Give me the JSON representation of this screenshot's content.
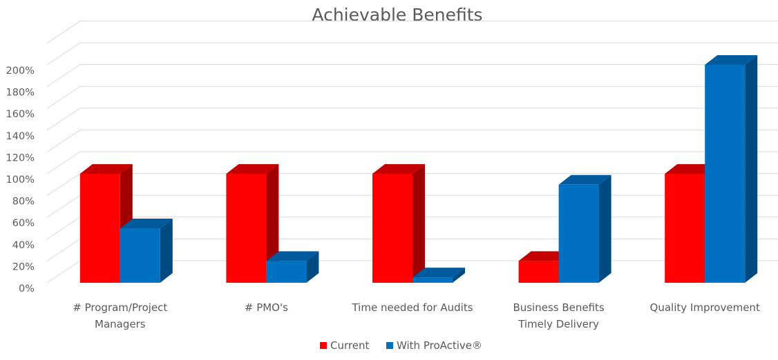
{
  "chart_data": {
    "type": "bar",
    "subtype": "3d-clustered-column",
    "title": "Achievable Benefits",
    "categories": [
      [
        "# Program/Project",
        "Managers"
      ],
      [
        "# PMO's"
      ],
      [
        "Time needed for Audits"
      ],
      [
        "Business Benefits",
        "Timely Delivery"
      ],
      [
        "Quality Improvement"
      ]
    ],
    "series": [
      {
        "name": "Current",
        "values": [
          100,
          100,
          100,
          20,
          100
        ],
        "color": "#ff0000",
        "side_color": "#a00000",
        "top_color": "#c40000"
      },
      {
        "name": "With ProActive®",
        "values": [
          50,
          20,
          5,
          90,
          200
        ],
        "color": "#0070c0",
        "side_color": "#004a82",
        "top_color": "#005a9e"
      }
    ],
    "yunit": "%",
    "yticks": [
      0,
      20,
      40,
      60,
      80,
      100,
      120,
      140,
      160,
      180,
      200
    ],
    "ylim": [
      0,
      200
    ],
    "grid": true,
    "legend": "bottom",
    "xlabel": "",
    "ylabel": ""
  }
}
